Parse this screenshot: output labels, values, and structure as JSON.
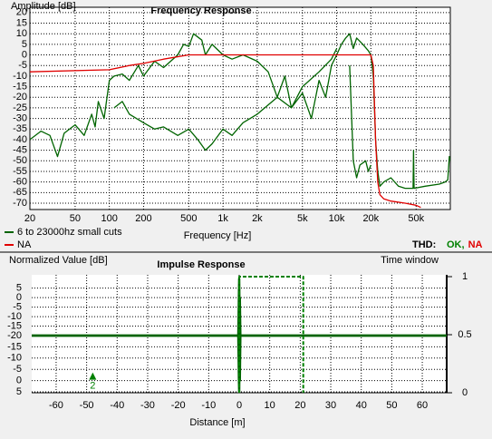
{
  "chart_data": [
    {
      "type": "line",
      "title": "Frequency Response",
      "y_label": "Amplitude [dB]",
      "x_label": "Frequency [Hz]",
      "log_x": true,
      "grid": true,
      "xlim": [
        20,
        100000
      ],
      "xticks": [
        20,
        50,
        100,
        200,
        500,
        {
          "value": 1000,
          "label": "1k"
        },
        {
          "value": 2000,
          "label": "2k"
        },
        {
          "value": 5000,
          "label": "5k"
        },
        {
          "value": 10000,
          "label": "10k"
        },
        {
          "value": 20000,
          "label": "20k"
        },
        {
          "value": 50000,
          "label": "50k"
        }
      ],
      "ylim": [
        -73,
        22.5
      ],
      "yticks": [
        20,
        15,
        10,
        5,
        0,
        -5,
        -10,
        -15,
        -20,
        -25,
        -30,
        -35,
        -40,
        -45,
        -50,
        -55,
        -60,
        -65,
        -70
      ],
      "series": [
        {
          "name": "6 to 23000hz small cuts",
          "color": "#006400",
          "x": [
            20,
            25,
            30,
            35,
            40,
            50,
            60,
            70,
            75,
            80,
            90,
            100,
            110,
            130,
            150,
            180,
            200,
            250,
            300,
            400,
            450,
            500,
            550,
            650,
            700,
            800,
            1000,
            1200,
            1500,
            2000,
            2500,
            3000,
            3500,
            4000,
            5000,
            6000,
            7000,
            8000,
            9000,
            10000,
            11000,
            12000,
            13000,
            14000,
            15000,
            17000,
            19000,
            20000,
            21000,
            22000,
            23000,
            24000,
            26000,
            30000,
            35000,
            40000,
            45000,
            47000,
            47500,
            48000,
            60000,
            80000,
            90000,
            95000,
            98000,
            100000,
            null,
            110,
            130,
            150,
            200,
            250,
            300,
            400,
            500,
            600,
            700,
            800,
            1000,
            1200,
            1500,
            2000,
            3000,
            4000,
            5000,
            7000,
            9000,
            10000,
            null,
            13000,
            14000,
            15000,
            16000,
            18000,
            19000,
            20000
          ],
          "values": [
            -40,
            -36,
            -38,
            -48,
            -37,
            -33,
            -38,
            -28,
            -34,
            -22,
            -30,
            -12,
            -10,
            -9,
            -12,
            -5,
            -10,
            -3,
            -6,
            0,
            5,
            4,
            10,
            7,
            0,
            5,
            0,
            -2,
            0,
            -3,
            -8,
            -20,
            -10,
            -25,
            -18,
            -30,
            -12,
            -20,
            -5,
            0,
            5,
            8,
            10,
            3,
            8,
            5,
            2,
            0,
            -10,
            -40,
            -55,
            -62,
            -60,
            -58,
            -62,
            -63,
            -63,
            -63,
            -45,
            -63,
            -62,
            -61,
            -60,
            -59,
            -48,
            -50,
            null,
            -25,
            -22,
            -28,
            -32,
            -35,
            -34,
            -38,
            -35,
            -40,
            -45,
            -42,
            -35,
            -38,
            -32,
            -28,
            -20,
            -25,
            -15,
            -8,
            -2,
            3,
            null,
            -5,
            -50,
            -58,
            -52,
            -50,
            -55,
            -52
          ]
        },
        {
          "name": "NA",
          "color": "#e00000",
          "x": [
            20,
            100,
            150,
            200,
            300,
            500,
            1000,
            5000,
            10000,
            15000,
            20000,
            21000,
            22000,
            23000,
            24000,
            26000,
            30000,
            40000,
            50000,
            55000
          ],
          "values": [
            -8,
            -7,
            -5,
            -4,
            -2,
            0,
            0,
            0,
            0,
            0,
            0,
            -5,
            -40,
            -60,
            -66,
            -68,
            -69,
            -70,
            -71,
            -72
          ]
        }
      ],
      "status": {
        "label": "THD:",
        "items": [
          {
            "text": "OK,",
            "color": "#008000"
          },
          {
            "text": "NA",
            "color": "#e00000"
          }
        ]
      }
    },
    {
      "type": "line",
      "title": "Impulse Response",
      "y_label": "Normalized Value [dB]",
      "x_label": "Distance [m]",
      "grid": true,
      "xlim": [
        -68,
        68
      ],
      "xticks": [
        -60,
        -50,
        -40,
        -30,
        -20,
        -10,
        0,
        10,
        20,
        30,
        40,
        50,
        60
      ],
      "ylim": [
        -20,
        12
      ],
      "yticks": [
        5,
        0,
        -5,
        -10,
        -15,
        -20
      ],
      "y_lower_lim": [
        -20,
        5
      ],
      "y_lower_ticks": [
        -15,
        -10,
        -5,
        0,
        5
      ],
      "y2lim": [
        0,
        1
      ],
      "y2ticks": [
        0,
        0.5,
        1
      ],
      "series": [
        {
          "color": "#006400",
          "x": [
            -68,
            -0.3,
            -0.1,
            0,
            0.1,
            0.2,
            0.4,
            68
          ],
          "values": [
            -20,
            -20,
            2,
            10,
            -5,
            0,
            -20,
            -20
          ]
        },
        {
          "color": "#006400",
          "axis": "y_lower",
          "x": [
            -68,
            -0.3,
            -0.1,
            0,
            0.1,
            0.2,
            0.4,
            68
          ],
          "values": [
            -20,
            -20,
            0,
            5,
            -10,
            0,
            -20,
            -20
          ]
        },
        {
          "name": "Time window",
          "color": "#008000",
          "axis": "y2",
          "dashed": true,
          "x": [
            0,
            0,
            21,
            21
          ],
          "values": [
            0,
            1,
            1,
            0
          ]
        }
      ],
      "marker": {
        "x": -48,
        "y": -2,
        "label": "2",
        "color": "#008000"
      }
    }
  ]
}
